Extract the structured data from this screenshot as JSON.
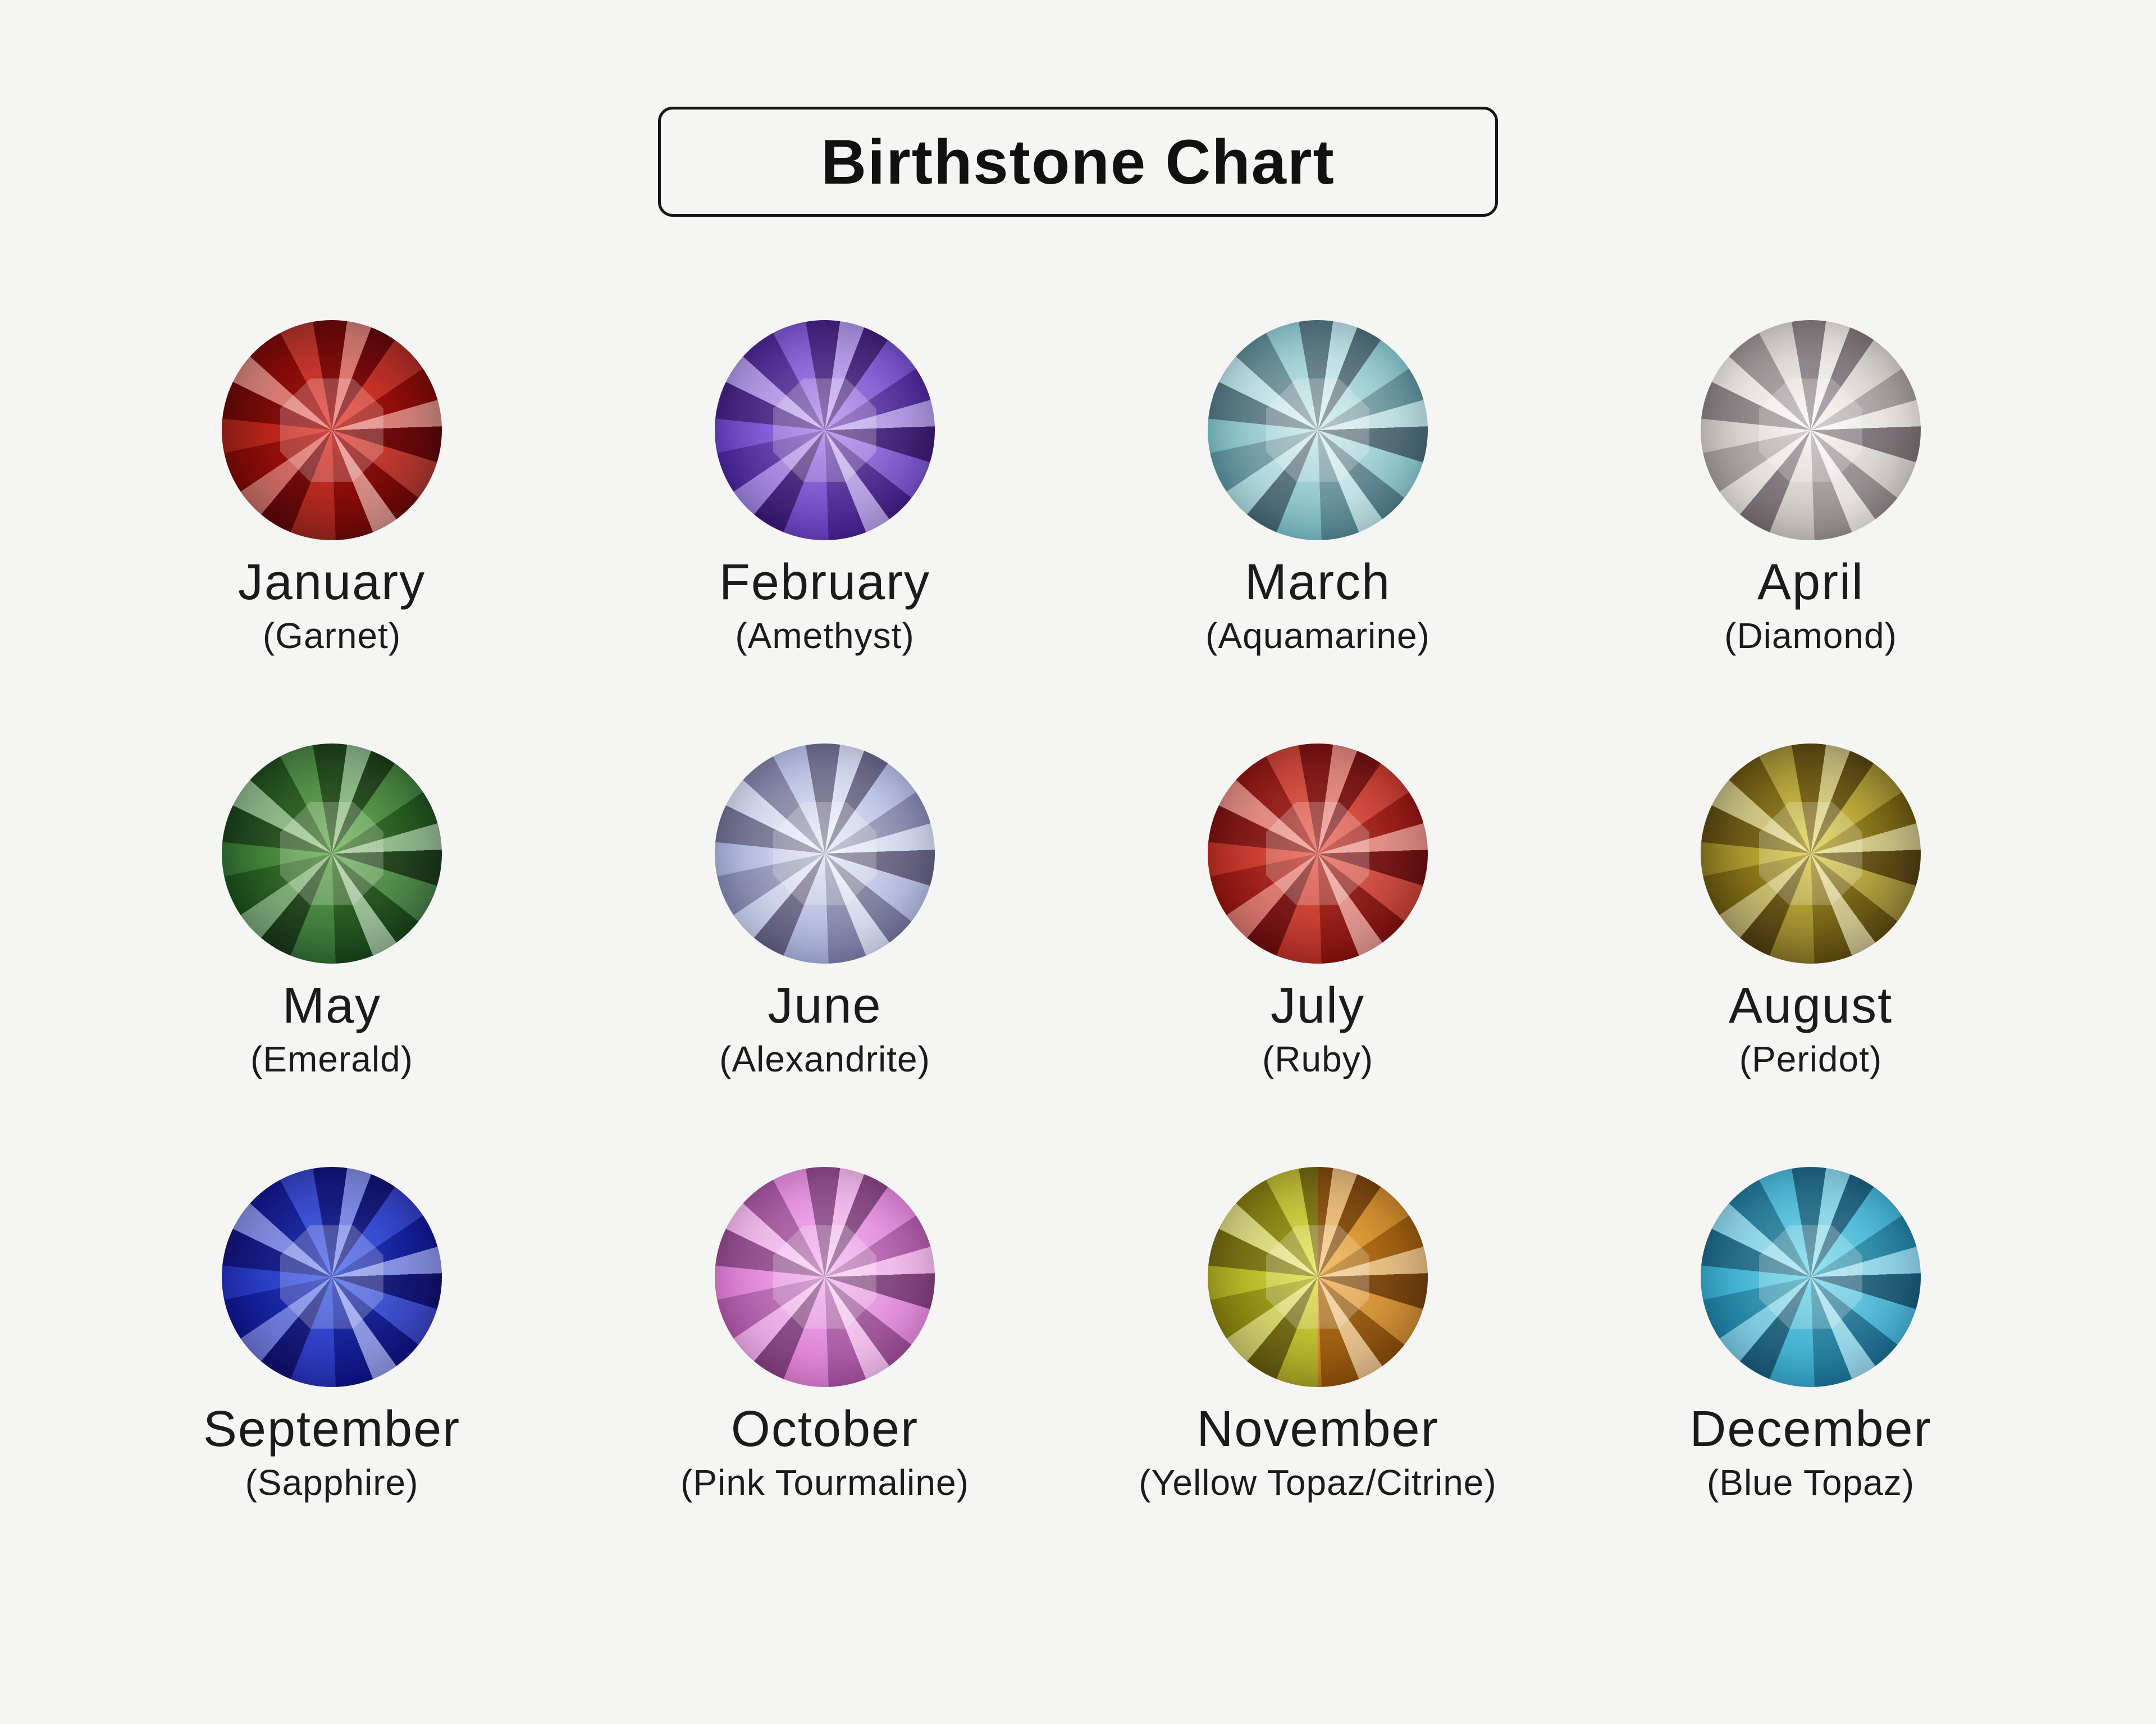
{
  "page": {
    "background": "#f5f5f4",
    "text_color": "#1b1b1b",
    "border_color": "#161616"
  },
  "title": {
    "text": "Birthstone Chart"
  },
  "months": [
    {
      "month": "January",
      "stone": "(Garnet)",
      "gem": {
        "c1": "#e6190b",
        "c2": "#7e0a02"
      }
    },
    {
      "month": "February",
      "stone": "(Amethyst)",
      "gem": {
        "c1": "#a478ec",
        "c2": "#4c22ae"
      }
    },
    {
      "month": "March",
      "stone": "(Aquamarine)",
      "gem": {
        "c1": "#c8eaea",
        "c2": "#5ea8b2"
      }
    },
    {
      "month": "April",
      "stone": "(Diamond)",
      "gem": {
        "c1": "#f8f6f3",
        "c2": "#b5b1ab"
      }
    },
    {
      "month": "May",
      "stone": "(Emerald)",
      "gem": {
        "c1": "#55a438",
        "c2": "#14521a"
      }
    },
    {
      "month": "June",
      "stone": "(Alexandrite)",
      "gem": {
        "c1": "#e4e8f8",
        "c2": "#8f99cc"
      }
    },
    {
      "month": "July",
      "stone": "(Ruby)",
      "gem": {
        "c1": "#ea4a38",
        "c2": "#a01208"
      }
    },
    {
      "month": "August",
      "stone": "(Peridot)",
      "gem": {
        "c1": "#dcc92e",
        "c2": "#6b590a"
      }
    },
    {
      "month": "September",
      "stone": "(Sapphire)",
      "gem": {
        "c1": "#2b4cec",
        "c2": "#0a149e"
      }
    },
    {
      "month": "October",
      "stone": "(Pink Tourmaline)",
      "gem": {
        "c1": "#f4acee",
        "c2": "#ce62c6"
      }
    },
    {
      "month": "November",
      "stone": "(Yellow Topaz/Citrine)",
      "gem": {
        "c1": "#e0e22c",
        "c2": "#908c08"
      },
      "gem2": {
        "c1": "#f2a326",
        "c2": "#a96205"
      }
    },
    {
      "month": "December",
      "stone": "(Blue Topaz)",
      "gem": {
        "c1": "#62d6ea",
        "c2": "#1690ba"
      }
    }
  ]
}
